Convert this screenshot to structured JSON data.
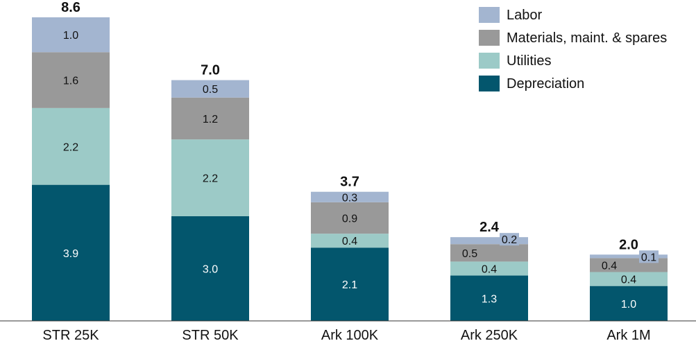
{
  "chart_data": {
    "type": "bar",
    "stacked": true,
    "categories": [
      "STR 25K",
      "STR 50K",
      "Ark 100K",
      "Ark 250K",
      "Ark 1M"
    ],
    "series": [
      {
        "name": "Depreciation",
        "color": "#03566d",
        "label_color": "#ffffff",
        "values": [
          3.9,
          3.0,
          2.1,
          1.3,
          1.0
        ]
      },
      {
        "name": "Utilities",
        "color": "#9ccac7",
        "label_color": "#111111",
        "values": [
          2.2,
          2.2,
          0.4,
          0.4,
          0.4
        ]
      },
      {
        "name": "Materials, maint. & spares",
        "color": "#999999",
        "label_color": "#111111",
        "values": [
          1.6,
          1.2,
          0.9,
          0.5,
          0.4
        ]
      },
      {
        "name": "Labor",
        "color": "#a3b5d0",
        "label_color": "#111111",
        "values": [
          1.0,
          0.5,
          0.3,
          0.2,
          0.1
        ]
      }
    ],
    "value_labels": [
      [
        "3.9",
        "3.0",
        "2.1",
        "1.3",
        "1.0"
      ],
      [
        "2.2",
        "2.2",
        "0.4",
        "0.4",
        "0.4"
      ],
      [
        "1.6",
        "1.2",
        "0.9",
        "0.5",
        "0.4"
      ],
      [
        "1.0",
        "0.5",
        "0.3",
        "0.2",
        "0.1"
      ]
    ],
    "totals": [
      8.6,
      7.0,
      3.7,
      2.4,
      2.0
    ],
    "total_labels": [
      "8.6",
      "7.0",
      "3.7",
      "2.4",
      "2.0"
    ],
    "legend_order": [
      "Labor",
      "Materials, maint. & spares",
      "Utilities",
      "Depreciation"
    ],
    "legend_position": "top-right",
    "ylim": [
      0,
      8.6
    ],
    "grid": false,
    "title": "",
    "xlabel": "",
    "ylabel": ""
  }
}
